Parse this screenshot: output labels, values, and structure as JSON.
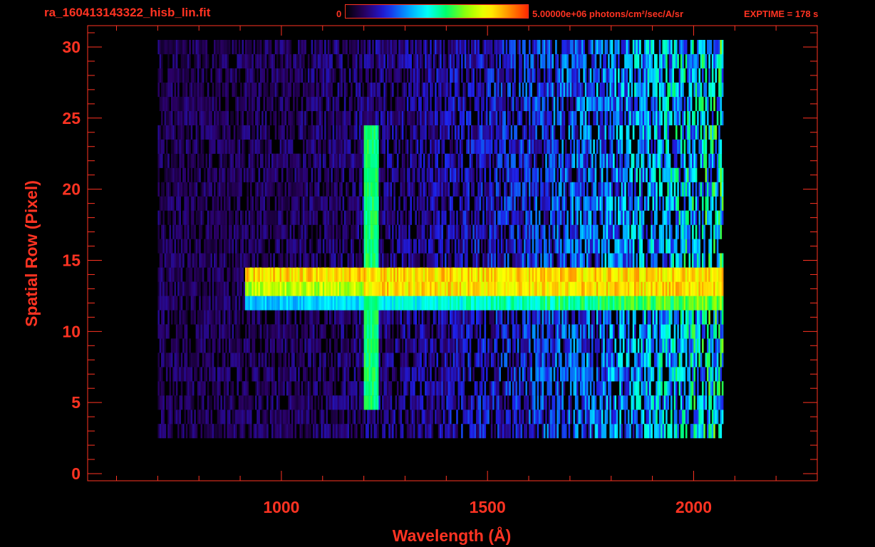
{
  "header": {
    "filename": "ra_160413143322_hisb_lin.fit",
    "colorbar_min": "0",
    "colorbar_max": "5.00000e+06 photons/cm²/sec/A/sr",
    "exptime": "EXPTIME = 178 s"
  },
  "colors": {
    "axis": "#ff3322",
    "background": "#000000"
  },
  "chart_data": {
    "type": "heatmap",
    "title": "ra_160413143322_hisb_lin.fit",
    "xlabel": "Wavelength (Å)",
    "ylabel": "Spatial Row (Pixel)",
    "xlim": [
      530,
      2300
    ],
    "ylim": [
      -0.5,
      31.5
    ],
    "x_ticks": [
      1000,
      1500,
      2000
    ],
    "y_ticks": [
      0,
      5,
      10,
      15,
      20,
      25,
      30
    ],
    "colorbar": {
      "min": 0,
      "max": 5000000,
      "units": "photons/cm²/sec/A/sr",
      "colormap": [
        "#000000",
        "#2a0066",
        "#1e1ee6",
        "#0096ff",
        "#00ffff",
        "#00ff64",
        "#9bff00",
        "#ffff00",
        "#ff9600",
        "#ff2800"
      ]
    },
    "data_extent": {
      "x": [
        700,
        2070
      ],
      "y": [
        3,
        30
      ]
    },
    "features": [
      {
        "name": "spectrum",
        "rows": [
          13,
          14
        ],
        "x": [
          910,
          2070
        ],
        "peak_level": 0.85
      },
      {
        "name": "spectrum wing",
        "rows": [
          12
        ],
        "x": [
          910,
          2070
        ],
        "peak_level": 0.55
      },
      {
        "name": "emission line",
        "x_center": 1216,
        "rows": [
          5,
          24
        ],
        "level": 0.55
      }
    ]
  }
}
